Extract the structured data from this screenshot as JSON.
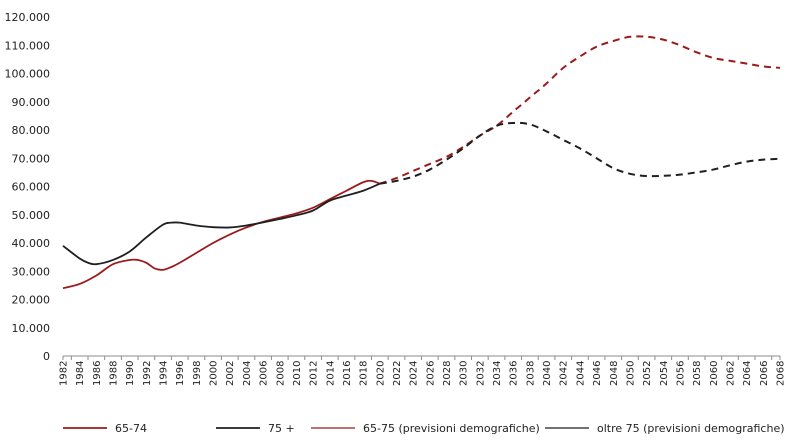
{
  "chart_data": {
    "type": "line",
    "title": "",
    "xlabel": "",
    "ylabel": "",
    "x_range": [
      1982,
      2068
    ],
    "ylim": [
      0,
      120000
    ],
    "y_ticks": [
      0,
      10000,
      20000,
      30000,
      40000,
      50000,
      60000,
      70000,
      80000,
      90000,
      100000,
      110000,
      120000
    ],
    "y_tick_labels": [
      "0",
      "10.000",
      "20.000",
      "30.000",
      "40.000",
      "50.000",
      "60.000",
      "70.000",
      "80.000",
      "90.000",
      "100.000",
      "110.000",
      "120.000"
    ],
    "x_tick_labels": [
      "1982",
      "1984",
      "1986",
      "1988",
      "1990",
      "1992",
      "1994",
      "1996",
      "1998",
      "2000",
      "2002",
      "2004",
      "2006",
      "2008",
      "2010",
      "2012",
      "2014",
      "2016",
      "2018",
      "2020",
      "2022",
      "2024",
      "2026",
      "2028",
      "2030",
      "2032",
      "2034",
      "2036",
      "2038",
      "2040",
      "2042",
      "2044",
      "2046",
      "2048",
      "2050",
      "2052",
      "2054",
      "2056",
      "2058",
      "2060",
      "2062",
      "2064",
      "2066",
      "2068"
    ],
    "grid": false,
    "legend_position": "bottom",
    "colors": {
      "red": "#9b1b1b",
      "black": "#1f1f1f"
    },
    "series": [
      {
        "name": "65-74",
        "color": "#9b1b1b",
        "dash": "solid",
        "x": [
          1982,
          1984,
          1986,
          1988,
          1990,
          1991,
          1992,
          1993,
          1994,
          1995,
          1996,
          1998,
          2000,
          2002,
          2004,
          2006,
          2008,
          2010,
          2012,
          2014,
          2016,
          2018,
          2019,
          2020
        ],
        "y": [
          24000,
          25500,
          28500,
          32500,
          34000,
          34000,
          33000,
          31000,
          30500,
          31500,
          33000,
          36500,
          40000,
          43000,
          45500,
          47500,
          49000,
          50500,
          52500,
          55500,
          58500,
          61500,
          62000,
          61000
        ]
      },
      {
        "name": "75 +",
        "color": "#1f1f1f",
        "dash": "solid",
        "x": [
          1982,
          1984,
          1985,
          1986,
          1988,
          1990,
          1992,
          1994,
          1995,
          1996,
          1998,
          2000,
          2002,
          2004,
          2006,
          2008,
          2010,
          2012,
          2014,
          2016,
          2018,
          2020
        ],
        "y": [
          39000,
          34500,
          33000,
          32500,
          34000,
          37000,
          42000,
          46500,
          47200,
          47200,
          46200,
          45600,
          45500,
          46200,
          47300,
          48500,
          49800,
          51500,
          55000,
          56800,
          58500,
          61000
        ]
      },
      {
        "name": "65-75 (previsioni demografiche)",
        "color": "#9b1b1b",
        "dash": "dashed",
        "x": [
          2020,
          2022,
          2024,
          2026,
          2028,
          2030,
          2032,
          2034,
          2036,
          2038,
          2040,
          2042,
          2044,
          2046,
          2048,
          2050,
          2052,
          2054,
          2056,
          2058,
          2060,
          2062,
          2064,
          2066,
          2068
        ],
        "y": [
          61000,
          63000,
          65500,
          68000,
          70500,
          74000,
          78000,
          81500,
          86500,
          91500,
          96500,
          102000,
          106000,
          109500,
          111500,
          113000,
          113000,
          112000,
          110000,
          107500,
          105500,
          104500,
          103500,
          102500,
          102000
        ]
      },
      {
        "name": "oltre 75 (previsioni demografiche)",
        "color": "#1f1f1f",
        "dash": "dashed",
        "x": [
          2020,
          2022,
          2024,
          2026,
          2028,
          2030,
          2032,
          2034,
          2036,
          2038,
          2040,
          2042,
          2044,
          2046,
          2048,
          2050,
          2052,
          2054,
          2056,
          2058,
          2060,
          2062,
          2064,
          2066,
          2068
        ],
        "y": [
          61000,
          62000,
          63500,
          66000,
          69500,
          73500,
          78000,
          81500,
          82500,
          82000,
          79500,
          76500,
          73500,
          70000,
          66500,
          64500,
          63700,
          63800,
          64200,
          65000,
          66000,
          67500,
          68800,
          69500,
          69800
        ]
      }
    ]
  }
}
